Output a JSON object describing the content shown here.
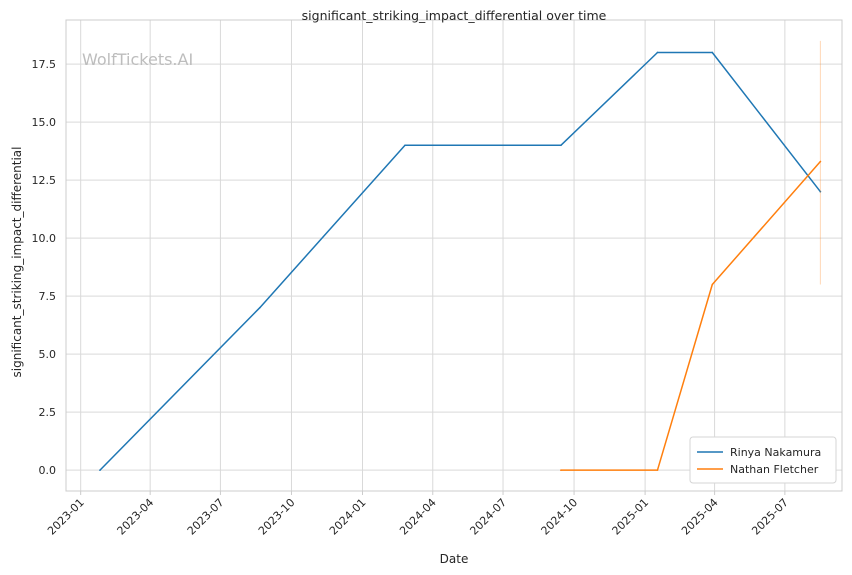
{
  "chart_data": {
    "type": "line",
    "title": "significant_striking_impact_differential over time",
    "xlabel": "Date",
    "ylabel": "significant_striking_impact_differential",
    "watermark": "WolfTickets.AI",
    "x_ticks": [
      "2023-01",
      "2023-04",
      "2023-07",
      "2023-10",
      "2024-01",
      "2024-04",
      "2024-07",
      "2024-10",
      "2025-01",
      "2025-04",
      "2025-07"
    ],
    "y_ticks": [
      "0.0",
      "2.5",
      "5.0",
      "7.5",
      "10.0",
      "12.5",
      "15.0",
      "17.5"
    ],
    "ylim": [
      -0.9,
      19.4
    ],
    "xlim": [
      "2022-12-13",
      "2025-09-13"
    ],
    "grid": true,
    "legend_position": "bottom-right",
    "series": [
      {
        "name": "Rinya Nakamura",
        "color": "#1f77b4",
        "points": [
          {
            "x": "2023-01-26",
            "y": 0
          },
          {
            "x": "2023-08-21",
            "y": 7
          },
          {
            "x": "2024-02-25",
            "y": 14
          },
          {
            "x": "2024-09-14",
            "y": 14
          },
          {
            "x": "2025-01-17",
            "y": 18
          },
          {
            "x": "2025-03-29",
            "y": 18
          },
          {
            "x": "2025-08-16",
            "y": 12
          }
        ]
      },
      {
        "name": "Nathan Fletcher",
        "color": "#ff7f0e",
        "points": [
          {
            "x": "2024-09-14",
            "y": 0
          },
          {
            "x": "2025-01-17",
            "y": 0
          },
          {
            "x": "2025-03-29",
            "y": 8
          },
          {
            "x": "2025-08-16",
            "y": 13.3
          }
        ],
        "error_bar": {
          "x": "2025-08-16",
          "low": 8,
          "high": 18.5
        }
      }
    ]
  }
}
